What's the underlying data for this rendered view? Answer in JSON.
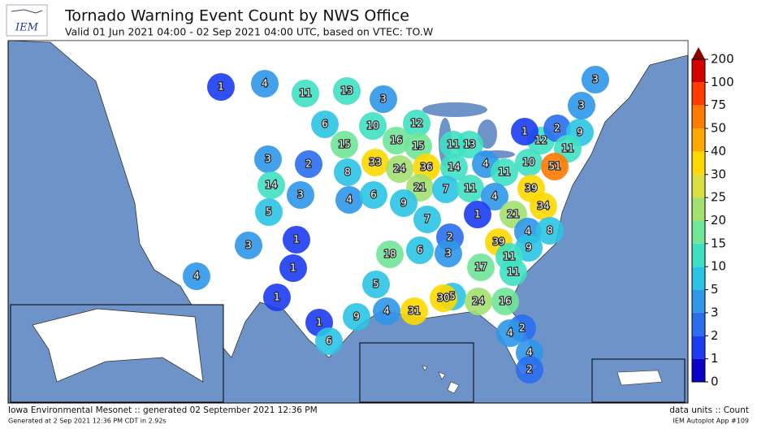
{
  "header": {
    "logo": "IEM",
    "title": "Tornado Warning Event Count by NWS Office",
    "subtitle": "Valid 01 Jun 2021 04:00 - 02 Sep 2021 04:00 UTC, based on VTEC: TO.W"
  },
  "legend": {
    "levels": [
      0,
      1,
      2,
      3,
      5,
      10,
      15,
      20,
      25,
      30,
      40,
      50,
      75,
      100,
      200
    ],
    "colors": [
      "#0a00c8",
      "#1c3cf2",
      "#2a6eee",
      "#2f97ea",
      "#2cc4e4",
      "#3fe0c2",
      "#70e698",
      "#a2e070",
      "#d8e044",
      "#ffd800",
      "#ffa800",
      "#ff7a00",
      "#ff3c00",
      "#d40000"
    ],
    "over_color": "#8b0000"
  },
  "map": {
    "counts": [
      1,
      4,
      11,
      13,
      3,
      6,
      10,
      12,
      16,
      15,
      15,
      11,
      13,
      3,
      2,
      8,
      33,
      24,
      36,
      14,
      4,
      11,
      10,
      12,
      1,
      2,
      9,
      11,
      3,
      3,
      51,
      14,
      3,
      4,
      6,
      21,
      9,
      7,
      11,
      4,
      39,
      5,
      7,
      1,
      21,
      34,
      4,
      8,
      2,
      39,
      9,
      11,
      3,
      1,
      1,
      18,
      6,
      3,
      17,
      11,
      4,
      1,
      5,
      5,
      1,
      9,
      4,
      31,
      30,
      24,
      16,
      6,
      2,
      4,
      4,
      2
    ]
  },
  "footer": {
    "left": "Iowa Environmental Mesonet :: generated 02 September 2021 12:36 PM",
    "left_small": "Generated at 2 Sep 2021 12:36 PM CDT in 2.92s",
    "right": "data units :: Count",
    "right_small": "IEM Autoplot App #109"
  }
}
